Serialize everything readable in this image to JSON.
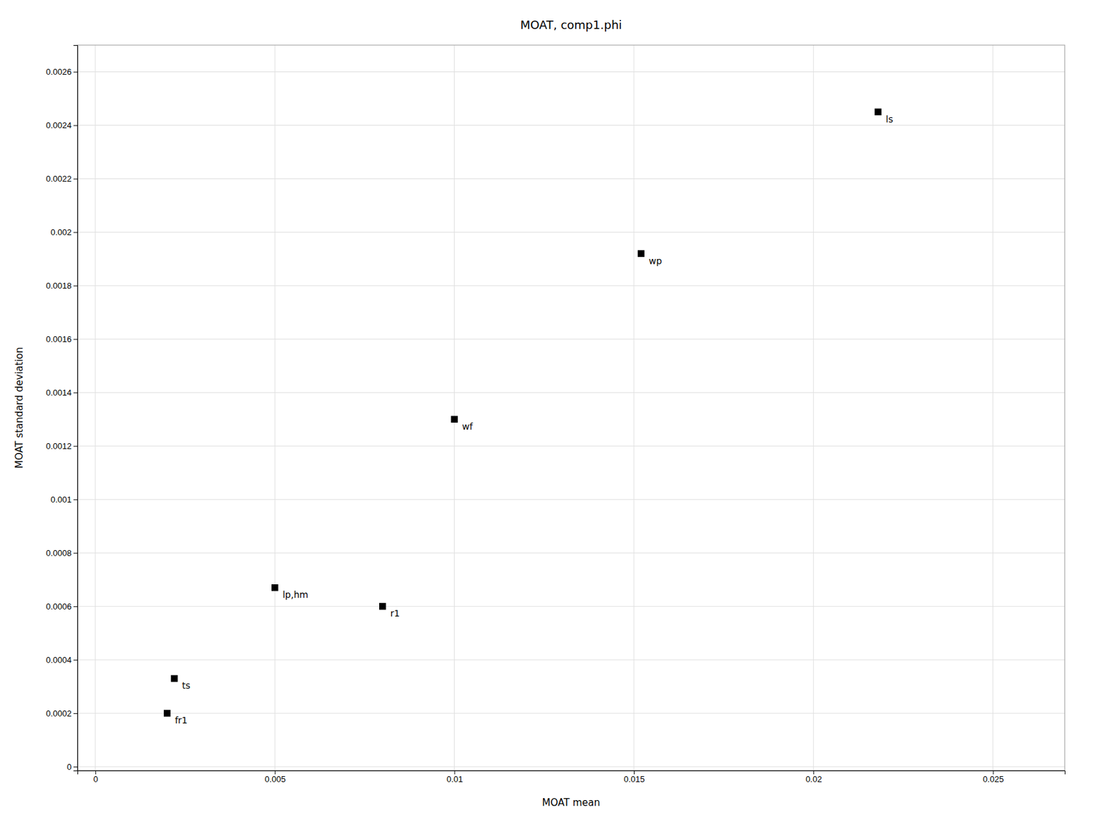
{
  "chart_data": {
    "type": "scatter",
    "title": "MOAT, comp1.phi",
    "xlabel": "MOAT mean",
    "ylabel": "MOAT standard deviation",
    "x": [
      0.0218,
      0.0152,
      0.01,
      0.005,
      0.008,
      0.0022,
      0.002
    ],
    "values": [
      0.00245,
      0.00192,
      0.0013,
      0.00067,
      0.0006,
      0.00033,
      0.0002
    ],
    "annotations": [
      "ls",
      "wp",
      "wf",
      "lp,hm",
      "r1",
      "ts",
      "fr1"
    ],
    "xlim": [
      -0.0005,
      0.027
    ],
    "ylim": [
      -1.4e-05,
      0.0027
    ],
    "xticks": [
      0,
      0.005,
      0.01,
      0.015,
      0.02,
      0.025
    ],
    "yticks": [
      0,
      0.0002,
      0.0004,
      0.0006,
      0.0008,
      0.001,
      0.0012,
      0.0014,
      0.0016,
      0.0018,
      0.002,
      0.0022,
      0.0024,
      0.0026
    ],
    "marker": "square",
    "color": "black",
    "grid": true
  }
}
